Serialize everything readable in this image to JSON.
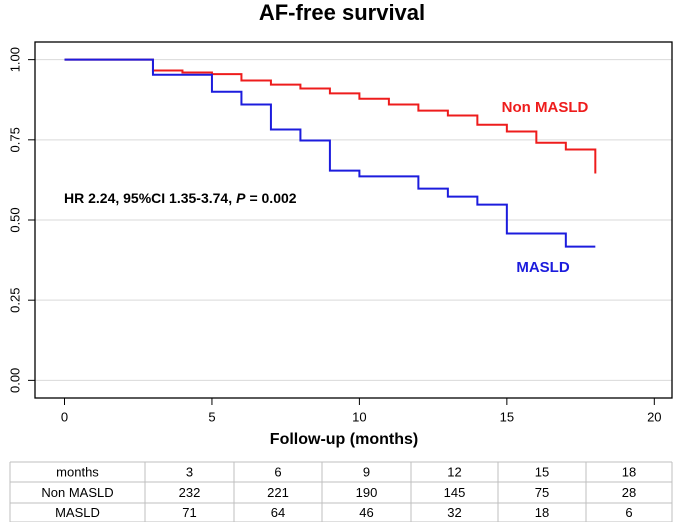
{
  "chart_data": {
    "type": "line",
    "drawstyle": "steps-post",
    "title": "AF-free survival",
    "x_label": "Follow-up (months)",
    "annotation": {
      "prefix": "HR 2.24, 95%CI 1.35-3.74,",
      "italic": "P",
      "suffix": "= 0.002"
    },
    "x": [
      0,
      3,
      4,
      5,
      6,
      7,
      8,
      9,
      10,
      11,
      12,
      13,
      14,
      15,
      16,
      17,
      18
    ],
    "series": [
      {
        "name": "Non MASLD",
        "color": "#ee1c1c",
        "values": [
          1,
          0.966,
          0.96,
          0.955,
          0.935,
          0.922,
          0.91,
          0.895,
          0.878,
          0.86,
          0.841,
          0.826,
          0.797,
          0.776,
          0.741,
          0.72,
          0.645
        ]
      },
      {
        "name": "MASLD",
        "color": "#1c1cdd",
        "values": [
          1,
          0.953,
          0.953,
          0.9,
          0.86,
          0.782,
          0.748,
          0.654,
          0.636,
          0.636,
          0.598,
          0.573,
          0.548,
          0.458,
          0.458,
          0.417,
          0.417
        ]
      }
    ],
    "xlim": [
      -1,
      20.6
    ],
    "xticks": [
      0,
      5,
      10,
      15,
      20
    ],
    "ylim": [
      -0.055,
      1.055
    ],
    "yticks": [
      {
        "value": 0,
        "label": "0.00"
      },
      {
        "value": 0.25,
        "label": "0.25"
      },
      {
        "value": 0.5,
        "label": "0.50"
      },
      {
        "value": 0.75,
        "label": "0.75"
      },
      {
        "value": 1,
        "label": "1.00"
      }
    ],
    "grid": true
  },
  "risk_table": {
    "header": [
      "months",
      3,
      6,
      9,
      12,
      15,
      18
    ],
    "rows": [
      [
        "Non MASLD",
        232,
        221,
        190,
        145,
        75,
        28
      ],
      [
        "MASLD",
        71,
        64,
        46,
        32,
        18,
        6
      ]
    ]
  }
}
